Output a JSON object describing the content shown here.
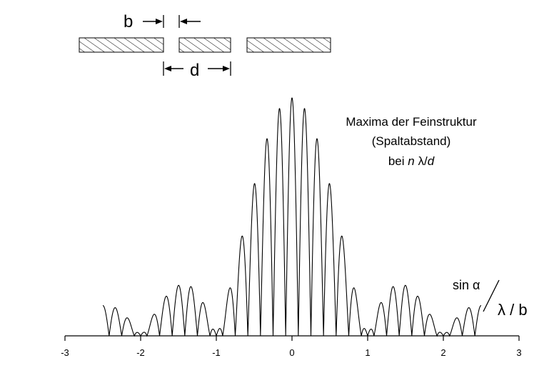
{
  "slit_diagram": {
    "label_b": "b",
    "label_d": "d"
  },
  "annotation": {
    "line1": "Maxima der Feinstruktur",
    "line2": "(Spaltabstand)",
    "line3_prefix": "bei ",
    "line3_n": "n",
    "line3_lambda": " λ/",
    "line3_d": "d"
  },
  "axis_label": {
    "numerator": "sin α",
    "denominator": "λ / b"
  },
  "chart_data": {
    "type": "line",
    "title": "",
    "xlabel": "sin α / (λ / b)",
    "ylabel": "",
    "xlim": [
      -3,
      3
    ],
    "x_ticks": [
      -3,
      -2,
      -1,
      0,
      1,
      2,
      3
    ],
    "x_tick_labels": [
      "-3",
      "-2",
      "-1",
      "0",
      "1",
      "2",
      "3"
    ],
    "x_range_plotted": [
      -2.5,
      2.5
    ],
    "ratio_d_over_b": 6,
    "num_slits": 2,
    "principal_maxima_x": [
      -0.667,
      -0.5,
      -0.333,
      -0.167,
      0,
      0.167,
      0.333,
      0.5,
      0.667
    ],
    "principal_maxima_rel_height": [
      0.16,
      0.41,
      0.69,
      0.91,
      1.0,
      0.91,
      0.69,
      0.41,
      0.16
    ],
    "grid": false,
    "line_color": "#000000"
  }
}
